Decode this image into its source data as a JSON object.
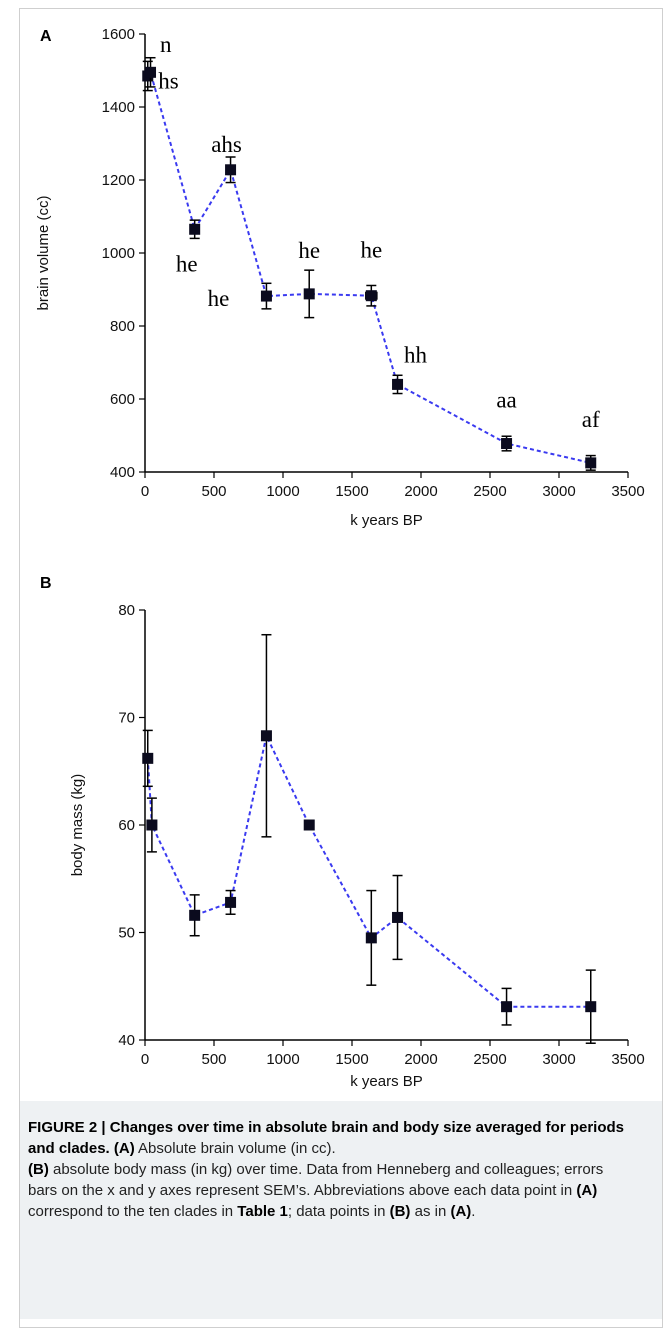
{
  "panels": [
    {
      "letter": "A"
    },
    {
      "letter": "B"
    }
  ],
  "caption": {
    "figure_label": "FIGURE 2 | Changes over time in absolute brain and body size averaged for periods and clades.",
    "ref_a1": "(A)",
    "text_a1": " Absolute brain volume (in cc).",
    "ref_b1": "(B)",
    "text_b1": " absolute body mass (in kg) over time. Data from Henneberg and colleagues; errors bars on the x and y axes represent SEM’s. Abbreviations above each data point in ",
    "ref_a2": "(A)",
    "text_mid": " correspond to the ten clades in ",
    "table_ref": "Table 1",
    "text_mid2": "; data points in ",
    "ref_b2": "(B)",
    "text_mid3": " as in ",
    "ref_a3": "(A)",
    "text_end": "."
  },
  "chart_data": [
    {
      "type": "line",
      "panel": "A",
      "xlabel": "k years BP",
      "ylabel": "brain volume (cc)",
      "xlim": [
        0,
        3500
      ],
      "ylim": [
        400,
        1600
      ],
      "xticks": [
        "0",
        "500",
        "1000",
        "1500",
        "2000",
        "2500",
        "3000",
        "3500"
      ],
      "yticks": [
        "400",
        "600",
        "800",
        "1000",
        "1200",
        "1400",
        "1600"
      ],
      "line_color": "#3a3af0",
      "line_style": "dashed",
      "marker": "square",
      "points": [
        {
          "x": 20,
          "y": 1485,
          "y_err": 40,
          "x_err": 0,
          "label": "n"
        },
        {
          "x": 40,
          "y": 1495,
          "y_err": 40,
          "x_err": 15,
          "label": "hs"
        },
        {
          "x": 360,
          "y": 1065,
          "y_err": 25,
          "x_err": 0,
          "label": "he"
        },
        {
          "x": 620,
          "y": 1228,
          "y_err": 35,
          "x_err": 0,
          "label": "ahs"
        },
        {
          "x": 880,
          "y": 882,
          "y_err": 35,
          "x_err": 0,
          "label": "he"
        },
        {
          "x": 1190,
          "y": 888,
          "y_err": 65,
          "x_err": 0,
          "label": "he"
        },
        {
          "x": 1640,
          "y": 883,
          "y_err": 28,
          "x_err": 40,
          "label": "he"
        },
        {
          "x": 1830,
          "y": 640,
          "y_err": 25,
          "x_err": 0,
          "label": "hh"
        },
        {
          "x": 2620,
          "y": 478,
          "y_err": 20,
          "x_err": 0,
          "label": "aa"
        },
        {
          "x": 3230,
          "y": 425,
          "y_err": 20,
          "x_err": 0,
          "label": "af"
        }
      ]
    },
    {
      "type": "line",
      "panel": "B",
      "xlabel": "k years BP",
      "ylabel": "body mass (kg)",
      "xlim": [
        0,
        3500
      ],
      "ylim": [
        40,
        80
      ],
      "xticks": [
        "0",
        "500",
        "1000",
        "1500",
        "2000",
        "2500",
        "3000",
        "3500"
      ],
      "yticks": [
        "40",
        "50",
        "60",
        "70",
        "80"
      ],
      "line_color": "#3a3af0",
      "line_style": "dashed",
      "marker": "square",
      "points": [
        {
          "x": 20,
          "y": 66.2,
          "y_err": 2.6,
          "x_err": 0
        },
        {
          "x": 50,
          "y": 60.0,
          "y_err": 2.5,
          "x_err": 0
        },
        {
          "x": 360,
          "y": 51.6,
          "y_err": 1.9,
          "x_err": 0
        },
        {
          "x": 620,
          "y": 52.8,
          "y_err": 1.1,
          "x_err": 0
        },
        {
          "x": 880,
          "y": 68.3,
          "y_err": 9.4,
          "x_err": 0
        },
        {
          "x": 1190,
          "y": 60.0,
          "y_err": 0.3,
          "x_err": 0
        },
        {
          "x": 1640,
          "y": 49.5,
          "y_err": 4.4,
          "x_err": 30
        },
        {
          "x": 1830,
          "y": 51.4,
          "y_err": 3.9,
          "x_err": 0
        },
        {
          "x": 2620,
          "y": 43.1,
          "y_err": 1.7,
          "x_err": 0
        },
        {
          "x": 3230,
          "y": 43.1,
          "y_err": 3.4,
          "x_err": 0
        }
      ]
    }
  ]
}
